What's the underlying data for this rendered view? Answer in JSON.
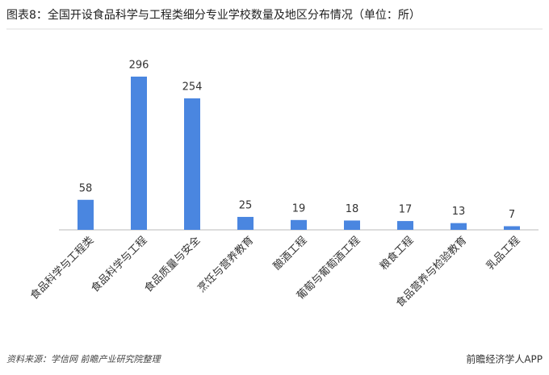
{
  "chart_data": {
    "type": "bar",
    "title": "图表8：全国开设食品科学与工程类细分专业学校数量及地区分布情况（单位：所）",
    "categories": [
      "食品科学与工程类",
      "食品科学与工程",
      "食品质量与安全",
      "烹饪与营养教育",
      "酿酒工程",
      "葡萄与葡萄酒工程",
      "粮食工程",
      "食品营养与检验教育",
      "乳品工程"
    ],
    "values": [
      58,
      296,
      254,
      25,
      19,
      18,
      17,
      13,
      7
    ],
    "color": "#4a86e0",
    "source": "资料来源：学信网 前瞻产业研究院整理",
    "brand": "前瞻经济学人APP"
  }
}
